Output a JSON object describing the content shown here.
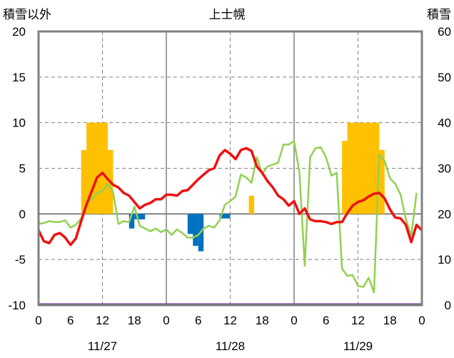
{
  "chart_data": {
    "type": "combo",
    "title": "上士幌",
    "y_left_label": "積雪以外",
    "y_right_label": "積雪",
    "y_left": {
      "min": -10,
      "max": 20,
      "ticks": [
        "20",
        "15",
        "10",
        "5",
        "0",
        "-5",
        "-10"
      ],
      "tick_values": [
        20,
        15,
        10,
        5,
        0,
        -5,
        -10
      ]
    },
    "y_right": {
      "min": 0,
      "max": 60,
      "ticks": [
        "60",
        "50",
        "40",
        "30",
        "20",
        "10",
        "0"
      ],
      "tick_values": [
        60,
        50,
        40,
        30,
        20,
        10,
        0
      ]
    },
    "x": {
      "min": 0,
      "max": 72,
      "tick_hours": [
        0,
        6,
        12,
        18,
        24,
        30,
        36,
        42,
        48,
        54,
        60,
        66,
        72
      ],
      "tick_labels": [
        "0",
        "6",
        "12",
        "18",
        "0",
        "6",
        "12",
        "18",
        "0",
        "6",
        "12",
        "18",
        "0"
      ]
    },
    "dates": [
      {
        "label": "11/27",
        "hour": 12
      },
      {
        "label": "11/28",
        "hour": 36
      },
      {
        "label": "11/29",
        "hour": 60
      }
    ],
    "colors": {
      "temperature": "#ee1111",
      "secondary_line": "#92d050",
      "snowfall_bars": "#ffc000",
      "precip_bars": "#0070c0",
      "baseline": "#7030a0",
      "day_divider": "#808080",
      "zero_line": "#808080",
      "grid": "#808080"
    },
    "temperature": [
      [
        0,
        -1.8
      ],
      [
        1,
        -3.0
      ],
      [
        2,
        -3.2
      ],
      [
        3,
        -2.3
      ],
      [
        4,
        -2.1
      ],
      [
        5,
        -2.6
      ],
      [
        6,
        -3.4
      ],
      [
        7,
        -2.7
      ],
      [
        8,
        -0.8
      ],
      [
        9,
        1.0
      ],
      [
        10,
        2.5
      ],
      [
        11,
        4.0
      ],
      [
        12,
        4.5
      ],
      [
        13,
        3.8
      ],
      [
        14,
        3.2
      ],
      [
        15,
        2.9
      ],
      [
        16,
        2.3
      ],
      [
        17,
        2.0
      ],
      [
        18,
        1.3
      ],
      [
        19,
        0.6
      ],
      [
        20,
        1.0
      ],
      [
        21,
        1.2
      ],
      [
        22,
        1.6
      ],
      [
        23,
        1.6
      ],
      [
        24,
        2.1
      ],
      [
        25,
        2.1
      ],
      [
        26,
        2.0
      ],
      [
        27,
        2.5
      ],
      [
        28,
        2.6
      ],
      [
        29,
        3.2
      ],
      [
        30,
        3.8
      ],
      [
        31,
        4.3
      ],
      [
        32,
        4.8
      ],
      [
        33,
        5.0
      ],
      [
        34,
        6.4
      ],
      [
        35,
        7.0
      ],
      [
        36,
        6.6
      ],
      [
        37,
        6.0
      ],
      [
        38,
        7.0
      ],
      [
        39,
        7.2
      ],
      [
        40,
        6.9
      ],
      [
        41,
        5.2
      ],
      [
        42,
        4.5
      ],
      [
        43,
        3.6
      ],
      [
        44,
        2.9
      ],
      [
        45,
        2.0
      ],
      [
        46,
        1.6
      ],
      [
        47,
        0.9
      ],
      [
        48,
        1.4
      ],
      [
        49,
        0.0
      ],
      [
        50,
        0.6
      ],
      [
        51,
        -0.6
      ],
      [
        52,
        -0.8
      ],
      [
        53,
        -0.8
      ],
      [
        54,
        -0.9
      ],
      [
        55,
        -1.1
      ],
      [
        56,
        -0.9
      ],
      [
        57,
        -0.9
      ],
      [
        58,
        0.1
      ],
      [
        59,
        0.9
      ],
      [
        60,
        1.3
      ],
      [
        61,
        1.5
      ],
      [
        62,
        1.9
      ],
      [
        63,
        2.2
      ],
      [
        64,
        2.3
      ],
      [
        65,
        1.7
      ],
      [
        66,
        0.5
      ],
      [
        67,
        -0.4
      ],
      [
        68,
        -0.5
      ],
      [
        69,
        -1.2
      ],
      [
        70,
        -3.1
      ],
      [
        71,
        -1.2
      ],
      [
        72,
        -1.8
      ]
    ],
    "secondary_line": [
      [
        0,
        -1.1
      ],
      [
        1,
        -1.0
      ],
      [
        2,
        -0.8
      ],
      [
        3,
        -0.9
      ],
      [
        4,
        -0.9
      ],
      [
        5,
        -0.7
      ],
      [
        6,
        -1.5
      ],
      [
        7,
        -1.2
      ],
      [
        8,
        -0.5
      ],
      [
        9,
        1.2
      ],
      [
        10,
        1.6
      ],
      [
        11,
        2.3
      ],
      [
        12,
        2.5
      ],
      [
        13,
        3.3
      ],
      [
        14,
        2.4
      ],
      [
        15,
        -1.1
      ],
      [
        16,
        -0.8
      ],
      [
        17,
        -0.9
      ],
      [
        18,
        0.8
      ],
      [
        19,
        -1.3
      ],
      [
        20,
        -1.6
      ],
      [
        21,
        -1.9
      ],
      [
        22,
        -1.6
      ],
      [
        23,
        -2.0
      ],
      [
        24,
        -1.7
      ],
      [
        25,
        -2.3
      ],
      [
        26,
        -1.7
      ],
      [
        27,
        -2.1
      ],
      [
        28,
        -2.6
      ],
      [
        29,
        -2.6
      ],
      [
        30,
        -2.3
      ],
      [
        31,
        -1.6
      ],
      [
        32,
        -1.3
      ],
      [
        33,
        -1.5
      ],
      [
        34,
        -0.7
      ],
      [
        35,
        1.0
      ],
      [
        36,
        1.4
      ],
      [
        37,
        1.9
      ],
      [
        38,
        4.3
      ],
      [
        39,
        4.0
      ],
      [
        40,
        3.4
      ],
      [
        41,
        6.2
      ],
      [
        42,
        4.4
      ],
      [
        43,
        5.2
      ],
      [
        44,
        5.4
      ],
      [
        45,
        5.6
      ],
      [
        46,
        7.6
      ],
      [
        47,
        7.6
      ],
      [
        48,
        8.0
      ],
      [
        49,
        4.5
      ],
      [
        50,
        -5.7
      ],
      [
        51,
        6.2
      ],
      [
        52,
        7.2
      ],
      [
        53,
        7.3
      ],
      [
        54,
        6.2
      ],
      [
        55,
        4.2
      ],
      [
        56,
        4.5
      ],
      [
        57,
        -6.0
      ],
      [
        58,
        -6.8
      ],
      [
        59,
        -6.7
      ],
      [
        60,
        -7.9
      ],
      [
        61,
        -8.0
      ],
      [
        62,
        -7.0
      ],
      [
        63,
        -8.6
      ],
      [
        64,
        6.5
      ],
      [
        65,
        5.8
      ],
      [
        66,
        3.9
      ],
      [
        67,
        3.3
      ],
      [
        68,
        2.1
      ],
      [
        69,
        -0.6
      ],
      [
        70,
        -2.4
      ],
      [
        71,
        2.3
      ]
    ],
    "snow_depth_bars": [
      {
        "start": 8,
        "end": 9,
        "value": 34
      },
      {
        "start": 9,
        "end": 12,
        "value": 40
      },
      {
        "start": 12,
        "end": 13,
        "value": 40
      },
      {
        "start": 13,
        "end": 14,
        "value": 34
      },
      {
        "start": 39.5,
        "end": 40.5,
        "value": 24
      },
      {
        "start": 57,
        "end": 58,
        "value": 36
      },
      {
        "start": 58,
        "end": 64,
        "value": 40
      },
      {
        "start": 64,
        "end": 65,
        "value": 34
      }
    ],
    "precip_bars": [
      {
        "start": 17,
        "end": 18,
        "value": -1.6
      },
      {
        "start": 18,
        "end": 20,
        "value": -0.6
      },
      {
        "start": 28,
        "end": 30,
        "value": -2.2
      },
      {
        "start": 29,
        "end": 30,
        "value": -3.5
      },
      {
        "start": 30,
        "end": 31,
        "value": -4.1
      },
      {
        "start": 34,
        "end": 36,
        "value": -0.5
      }
    ]
  }
}
